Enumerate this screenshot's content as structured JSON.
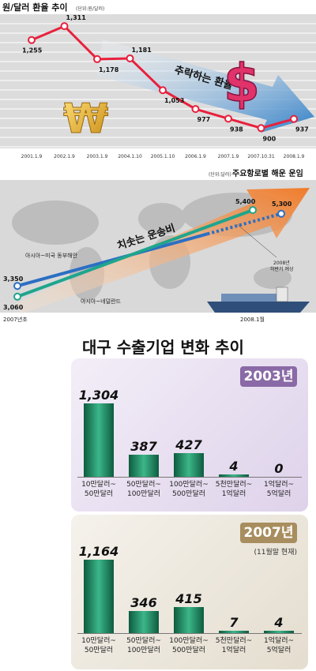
{
  "panel1": {
    "title": "원/달러 환율 추이",
    "unit": "(단위:원/달러)",
    "arrow_label": "추락하는 환율",
    "won_symbol": "₩",
    "dollar_symbol": "$",
    "colors": {
      "line": "#e8203c",
      "marker": "#ffffff",
      "arrow": "#2f7ec6",
      "background": "#dcdcdc"
    }
  },
  "panel2": {
    "unit": "(단위:달러)",
    "title": "주요항로별 해운 운임",
    "arrow_label": "치솟는 운송비",
    "route1_label": "아시아~미국 동부해안",
    "route2_label": "아시아~네덜란드",
    "forecast_label": "2008년\n하반기 예상",
    "start_label": "2007년초",
    "end_label": "2008.1월",
    "colors": {
      "route1": "#2b6fc4",
      "route2": "#1fa58c",
      "arrow": "#f08a3c"
    }
  },
  "panel3": {
    "title": "대구 수출기업 변화 추이",
    "years": [
      {
        "label": "2003년",
        "note": ""
      },
      {
        "label": "2007년",
        "note": "(11월말 현재)"
      }
    ],
    "colors": {
      "bar": "#1f8a5e",
      "panel_2003": "#e6dcef",
      "panel_2007": "#ece7dc"
    }
  },
  "chart_data": [
    {
      "type": "line",
      "title": "원/달러 환율 추이",
      "ylabel": "(단위:원/달러)",
      "x": [
        "2001.1.9",
        "2002.1.9",
        "2003.1.9",
        "2004.1.10",
        "2005.1.10",
        "2006.1.9",
        "2007.1.9",
        "2007.10.31",
        "2008.1.9"
      ],
      "values": [
        1255,
        1311,
        1178,
        1181,
        1053,
        977,
        938,
        900,
        937
      ],
      "value_labels": [
        "1,255",
        "1,311",
        "1,178",
        "1,181",
        "1,053",
        "977",
        "938",
        "900",
        "937"
      ],
      "ylim": [
        850,
        1340
      ]
    },
    {
      "type": "line",
      "title": "주요항로별 해운 운임",
      "ylabel": "(단위:달러)",
      "x": [
        "2007년초",
        "2008.1월"
      ],
      "series": [
        {
          "name": "아시아~미국 동부해안",
          "values": [
            3350,
            5300
          ],
          "value_labels": [
            "3,350",
            "5,300"
          ]
        },
        {
          "name": "아시아~네덜란드",
          "values": [
            3060,
            5400
          ],
          "value_labels": [
            "3,060",
            "5,400"
          ]
        }
      ],
      "ylim": [
        2800,
        5700
      ]
    },
    {
      "type": "bar",
      "title": "2003년",
      "categories": [
        "10만달러~\n50만달러",
        "50만달러~\n100만달러",
        "100만달러~\n500만달러",
        "5천만달러~\n1억달러",
        "1억달러~\n5억달러"
      ],
      "values": [
        1304,
        387,
        427,
        4,
        0
      ],
      "value_labels": [
        "1,304",
        "387",
        "427",
        "4",
        "0"
      ],
      "ylim": [
        0,
        1400
      ]
    },
    {
      "type": "bar",
      "title": "2007년",
      "subtitle": "(11월말 현재)",
      "categories": [
        "10만달러~\n50만달러",
        "50만달러~\n100만달러",
        "100만달러~\n500만달러",
        "5천만달러~\n1억달러",
        "1억달러~\n5억달러"
      ],
      "values": [
        1164,
        346,
        415,
        7,
        4
      ],
      "value_labels": [
        "1,164",
        "346",
        "415",
        "7",
        "4"
      ],
      "ylim": [
        0,
        1250
      ]
    }
  ]
}
